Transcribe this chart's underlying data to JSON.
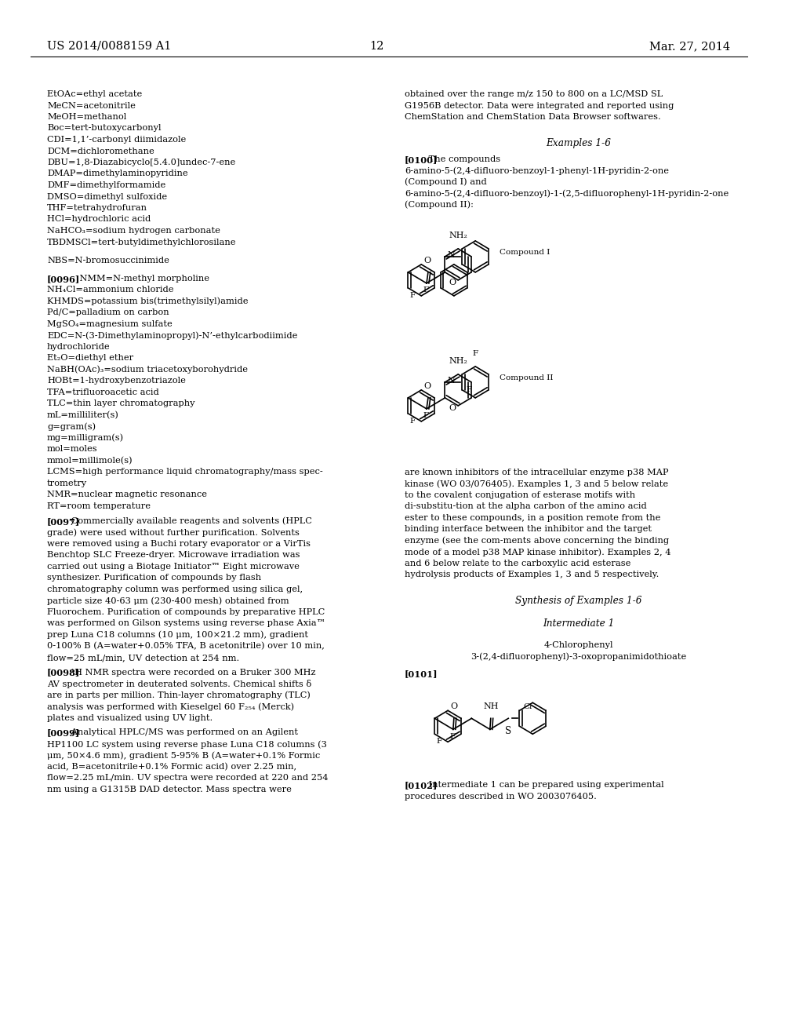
{
  "bg_color": "#ffffff",
  "header_left": "US 2014/0088159 A1",
  "header_center": "12",
  "header_right": "Mar. 27, 2014",
  "left_col_lines": [
    "EtOAc=ethyl acetate",
    "MeCN=acetonitrile",
    "MeOH=methanol",
    "Boc=tert-butoxycarbonyl",
    "CDI=1,1’-carbonyl diimidazole",
    "DCM=dichloromethane",
    "DBU=1,8-Diazabicyclo[5.4.0]undec-7-ene",
    "DMAP=dimethylaminopyridine",
    "DMF=dimethylformamide",
    "DMSO=dimethyl sulfoxide",
    "THF=tetrahydrofuran",
    "HCl=hydrochloric acid",
    "NaHCO₃=sodium hydrogen carbonate",
    "TBDMSCl=tert-butyldimethylchlorosilane",
    "",
    "NBS=N-bromosuccinimide",
    "",
    "[0096]    NMM=N-methyl morpholine",
    "NH₄Cl=ammonium chloride",
    "KHMDS=potassium bis(trimethylsilyl)amide",
    "Pd/C=palladium on carbon",
    "MgSO₄=magnesium sulfate",
    "EDC=N-(3-Dimethylaminopropyl)-N’-ethylcarbodiimide",
    "hydrochloride",
    "Et₂O=diethyl ether",
    "NaBH(OAc)₃=sodium triacetoxyborohydride",
    "HOBt=1-hydroxybenzotriazole",
    "TFA=trifluoroacetic acid",
    "TLC=thin layer chromatography",
    "mL=milliliter(s)",
    "g=gram(s)",
    "mg=milligram(s)",
    "mol=moles",
    "mmol=millimole(s)",
    "LCMS=high performance liquid chromatography/mass spec-",
    "trometry",
    "NMR=nuclear magnetic resonance",
    "RT=room temperature"
  ],
  "para0097": "[0097]    Commercially available reagents and solvents (HPLC grade) were used without further purification. Solvents were removed using a Buchi rotary evaporator or a VirTis Benchtop SLC Freeze-dryer. Microwave irradiation was carried out using a Biotage Initiator™ Eight microwave synthesizer. Purification of compounds by flash chromatography column was performed using silica gel, particle size 40-63 μm (230-400 mesh) obtained from Fluorochem. Purification of compounds by preparative HPLC was performed on Gilson systems using reverse phase Axia™ prep Luna C18 columns (10 μm, 100×21.2 mm), gradient 0-100% B (A=water+0.05% TFA, B acetonitrile) over 10 min, flow=25 mL/min, UV detection at 254 nm.",
  "para0098": "[0098]    ¹H NMR spectra were recorded on a Bruker 300 MHz AV spectrometer in deuterated solvents. Chemical shifts δ are in parts per million. Thin-layer chromatography (TLC) analysis was performed with Kieselgel 60 F₂₅₄ (Merck) plates and visualized using UV light.",
  "para0099": "[0099]    Analytical HPLC/MS was performed on an Agilent HP1100 LC system using reverse phase Luna C18 columns (3 μm, 50×4.6 mm), gradient 5-95% B (A=water+0.1% Formic acid, B=acetonitrile+0.1% Formic acid) over 2.25 min, flow=2.25 mL/min. UV spectra were recorded at 220 and 254 nm using a G1315B DAD detector. Mass spectra were",
  "right_col_top": "obtained over the range m/z 150 to 800 on a LC/MSD SL G1956B detector. Data were integrated and reported using ChemStation and ChemStation Data Browser softwares.",
  "examples_header": "Examples 1-6",
  "para0100_intro": "[0100]    The compounds 6-amino-5-(2,4-difluoro-benzoyl-1-phenyl-1H-pyridin-2-one (Compound I) and 6-amino-5-(2,4-difluoro-benzoyl)-1-(2,5-difluorophenyl-1H-pyridin-2-one (Compound II):",
  "compound_I_label": "Compound I",
  "compound_II_label": "Compound II",
  "para_after_compounds": "are known inhibitors of the intracellular enzyme p38 MAP kinase (WO 03/076405). Examples 1, 3 and 5 below relate to the covalent conjugation of esterase motifs with di-substitu-tion at the alpha carbon of the amino acid ester to these compounds, in a position remote from the binding interface between the inhibitor and the target enzyme (see the com-ments above concerning the binding mode of a model p38 MAP kinase inhibitor). Examples 2, 4 and 6 below relate to the carboxylic acid esterase hydrolysis products of Examples 1, 3 and 5 respectively.",
  "synthesis_header": "Synthesis of Examples 1-6",
  "intermediate_header": "Intermediate 1",
  "intermediate_name": "4-Chlorophenyl",
  "intermediate_name2": "3-(2,4-difluorophenyl)-3-oxopropanimidothioate",
  "para0101": "[0101]",
  "para0102": "[0102]    Intermediate 1 can be prepared using experimental procedures described in WO 2003076405."
}
